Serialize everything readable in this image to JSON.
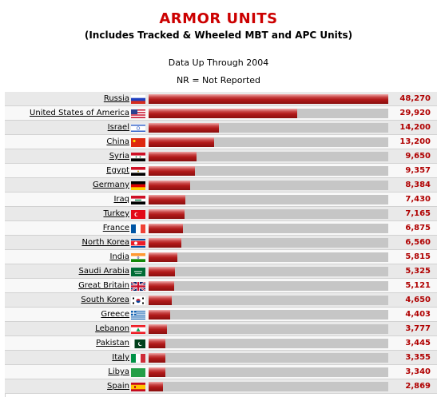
{
  "header": {
    "title": "ARMOR UNITS",
    "subtitle": "(Includes Tracked & Wheeled MBT and APC Units)",
    "note1": "Data Up Through 2004",
    "note2": "NR = Not Reported"
  },
  "chart_data": {
    "type": "bar",
    "orientation": "horizontal",
    "title": "ARMOR UNITS",
    "subtitle": "(Includes Tracked & Wheeled MBT and APC Units)",
    "categories": [
      "Russia",
      "United States of America",
      "Israel",
      "China",
      "Syria",
      "Egypt",
      "Germany",
      "Iraq",
      "Turkey",
      "France",
      "North Korea",
      "India",
      "Saudi Arabia",
      "Great Britain",
      "South Korea",
      "Greece",
      "Lebanon",
      "Pakistan",
      "Italy",
      "Libya",
      "Spain"
    ],
    "values": [
      48270,
      29920,
      14200,
      13200,
      9650,
      9357,
      8384,
      7430,
      7165,
      6875,
      6560,
      5815,
      5325,
      5121,
      4650,
      4403,
      3777,
      3445,
      3355,
      3340,
      2869
    ],
    "value_labels": [
      "48,270",
      "29,920",
      "14,200",
      "13,200",
      "9,650",
      "9,357",
      "8,384",
      "7,430",
      "7,165",
      "6,875",
      "6,560",
      "5,815",
      "5,325",
      "5,121",
      "4,650",
      "4,403",
      "3,777",
      "3,445",
      "3,355",
      "3,340",
      "2,869"
    ],
    "xlim": [
      0,
      48270
    ],
    "flag_icons": [
      "russia-flag-icon",
      "usa-flag-icon",
      "israel-flag-icon",
      "china-flag-icon",
      "syria-flag-icon",
      "egypt-flag-icon",
      "germany-flag-icon",
      "iraq-flag-icon",
      "turkey-flag-icon",
      "france-flag-icon",
      "north-korea-flag-icon",
      "india-flag-icon",
      "saudi-arabia-flag-icon",
      "great-britain-flag-icon",
      "south-korea-flag-icon",
      "greece-flag-icon",
      "lebanon-flag-icon",
      "pakistan-flag-icon",
      "italy-flag-icon",
      "libya-flag-icon",
      "spain-flag-icon"
    ],
    "colors": {
      "bar": "#b11a1a",
      "track": "#c6c6c6",
      "value_text": "#b00000",
      "title": "#cc0000"
    }
  }
}
